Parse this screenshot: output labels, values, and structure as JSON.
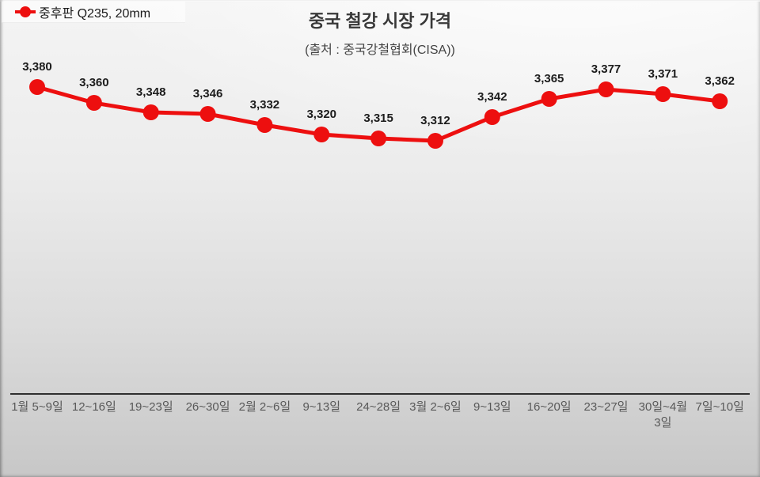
{
  "legend": {
    "label": "중후판 Q235, 20mm",
    "marker_color": "#ed0f0f"
  },
  "header": {
    "title": "중국 철강 시장 가격",
    "subtitle": "(출처 : 중국강철협회(CISA))"
  },
  "chart_data": {
    "type": "line",
    "title": "중국 철강 시장 가격",
    "subtitle": "(출처 : 중국강철협회(CISA))",
    "categories": [
      "1월 5~9일",
      "12~16일",
      "19~23일",
      "26~30일",
      "2월 2~6일",
      "9~13일",
      "24~28일",
      "3월 2~6일",
      "9~13일",
      "16~20일",
      "23~27일",
      "30일~4월 3일",
      "7일~10일"
    ],
    "series": [
      {
        "name": "중후판 Q235, 20mm",
        "color": "#ed0f0f",
        "values": [
          3380,
          3360,
          3348,
          3346,
          3332,
          3320,
          3315,
          3312,
          3342,
          3365,
          3377,
          3371,
          3362
        ]
      }
    ],
    "data_labels": [
      "3,380",
      "3,360",
      "3,348",
      "3,346",
      "3,332",
      "3,320",
      "3,315",
      "3,312",
      "3,342",
      "3,365",
      "3,377",
      "3,371",
      "3,362"
    ],
    "xlabel": "",
    "ylabel": "",
    "ylim": [
      2990,
      3390
    ],
    "grid": false,
    "legend_position": "top-left",
    "axis_line_color": "#2f2f2f",
    "data_label_position": "above"
  }
}
